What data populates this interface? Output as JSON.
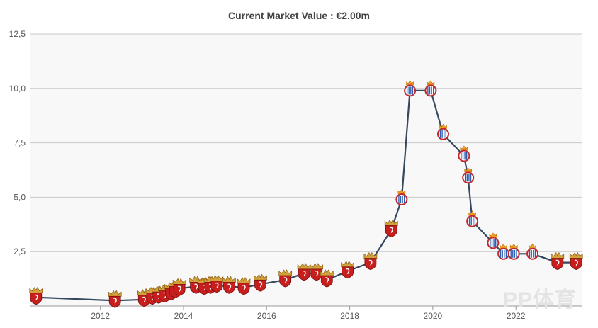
{
  "chart_data": {
    "type": "line",
    "title": "Current Market Value : €2.00m",
    "xlabel": "",
    "ylabel": "",
    "xlim": [
      2010.3,
      2023.6
    ],
    "ylim": [
      0,
      12.5
    ],
    "yticks": [
      {
        "value": 2.5,
        "label": "2,5"
      },
      {
        "value": 5.0,
        "label": "5,0"
      },
      {
        "value": 7.5,
        "label": "7,5"
      },
      {
        "value": 10.0,
        "label": "10,0"
      },
      {
        "value": 12.5,
        "label": "12,5"
      }
    ],
    "xticks": [
      {
        "value": 2012,
        "label": "2012"
      },
      {
        "value": 2014,
        "label": "2014"
      },
      {
        "value": 2016,
        "label": "2016"
      },
      {
        "value": 2018,
        "label": "2018"
      },
      {
        "value": 2020,
        "label": "2020"
      },
      {
        "value": 2022,
        "label": "2022"
      }
    ],
    "grid": true,
    "line_color": "#34495e",
    "series": [
      {
        "name": "Market value",
        "points": [
          {
            "x": 2010.45,
            "y": 0.4,
            "club": "Granada"
          },
          {
            "x": 2012.35,
            "y": 0.25,
            "club": "Granada"
          },
          {
            "x": 2013.05,
            "y": 0.3,
            "club": "Granada"
          },
          {
            "x": 2013.25,
            "y": 0.4,
            "club": "Granada"
          },
          {
            "x": 2013.4,
            "y": 0.45,
            "club": "Granada"
          },
          {
            "x": 2013.55,
            "y": 0.5,
            "club": "Granada"
          },
          {
            "x": 2013.7,
            "y": 0.6,
            "club": "Granada"
          },
          {
            "x": 2013.8,
            "y": 0.7,
            "club": "Granada"
          },
          {
            "x": 2013.9,
            "y": 0.8,
            "club": "Granada"
          },
          {
            "x": 2014.3,
            "y": 0.9,
            "club": "Granada"
          },
          {
            "x": 2014.5,
            "y": 0.85,
            "club": "Granada"
          },
          {
            "x": 2014.65,
            "y": 0.9,
            "club": "Granada"
          },
          {
            "x": 2014.8,
            "y": 0.95,
            "club": "Granada"
          },
          {
            "x": 2015.1,
            "y": 0.9,
            "club": "Granada"
          },
          {
            "x": 2015.45,
            "y": 0.85,
            "club": "Granada"
          },
          {
            "x": 2015.85,
            "y": 1.0,
            "club": "Granada"
          },
          {
            "x": 2016.45,
            "y": 1.2,
            "club": "Granada"
          },
          {
            "x": 2016.9,
            "y": 1.5,
            "club": "Granada"
          },
          {
            "x": 2017.2,
            "y": 1.5,
            "club": "Granada"
          },
          {
            "x": 2017.45,
            "y": 1.2,
            "club": "Granada"
          },
          {
            "x": 2017.95,
            "y": 1.6,
            "club": "Granada"
          },
          {
            "x": 2018.5,
            "y": 2.0,
            "club": "Granada"
          },
          {
            "x": 2019.0,
            "y": 3.5,
            "club": "Granada"
          },
          {
            "x": 2019.25,
            "y": 4.9,
            "club": "Espanyol"
          },
          {
            "x": 2019.45,
            "y": 9.9,
            "club": "Espanyol"
          },
          {
            "x": 2019.95,
            "y": 9.9,
            "club": "Espanyol"
          },
          {
            "x": 2020.25,
            "y": 7.9,
            "club": "Espanyol"
          },
          {
            "x": 2020.75,
            "y": 6.9,
            "club": "Espanyol"
          },
          {
            "x": 2020.85,
            "y": 5.9,
            "club": "Espanyol"
          },
          {
            "x": 2020.95,
            "y": 3.9,
            "club": "Espanyol"
          },
          {
            "x": 2021.45,
            "y": 2.9,
            "club": "Espanyol"
          },
          {
            "x": 2021.7,
            "y": 2.4,
            "club": "Espanyol"
          },
          {
            "x": 2021.95,
            "y": 2.4,
            "club": "Espanyol"
          },
          {
            "x": 2022.4,
            "y": 2.4,
            "club": "Espanyol"
          },
          {
            "x": 2023.0,
            "y": 2.0,
            "club": "Granada"
          },
          {
            "x": 2023.45,
            "y": 2.0,
            "club": "Granada"
          }
        ]
      }
    ]
  },
  "watermark": "PP体育"
}
